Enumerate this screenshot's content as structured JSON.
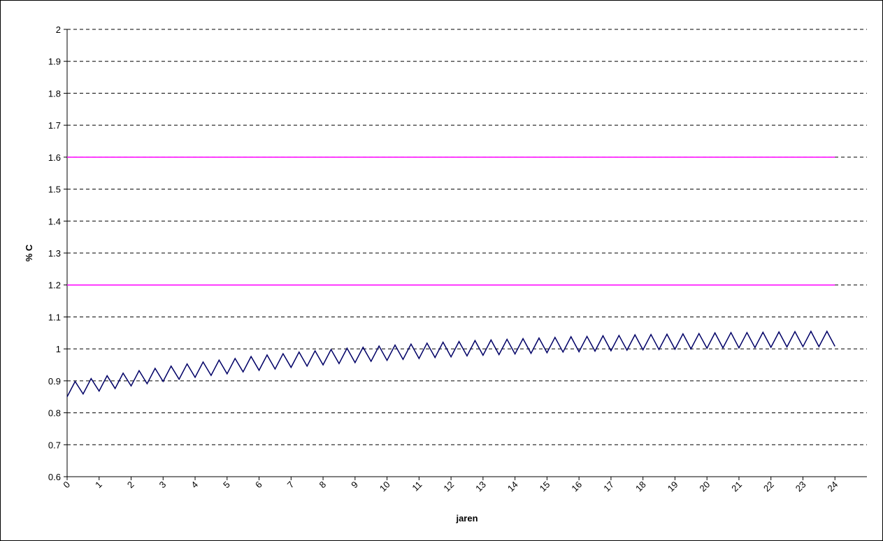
{
  "chart_data": {
    "type": "line",
    "xlabel": "jaren",
    "ylabel": "% C",
    "xlim": [
      0,
      25
    ],
    "xticks": [
      0,
      1,
      2,
      3,
      4,
      5,
      6,
      7,
      8,
      9,
      10,
      11,
      12,
      13,
      14,
      15,
      16,
      17,
      18,
      19,
      20,
      21,
      22,
      23,
      24
    ],
    "ylim": [
      0.6,
      2
    ],
    "yticks": [
      0.6,
      0.7,
      0.8,
      0.9,
      1,
      1.1,
      1.2,
      1.3,
      1.4,
      1.5,
      1.6,
      1.7,
      1.8,
      1.9,
      2
    ],
    "grid": true,
    "series": [
      {
        "color": "#000066",
        "x": [
          0,
          0.25,
          0.5,
          0.75,
          1,
          1.25,
          1.5,
          1.75,
          2,
          2.25,
          2.5,
          2.75,
          3,
          3.25,
          3.5,
          3.75,
          4,
          4.25,
          4.5,
          4.75,
          5,
          5.25,
          5.5,
          5.75,
          6,
          6.25,
          6.5,
          6.75,
          7,
          7.25,
          7.5,
          7.75,
          8,
          8.25,
          8.5,
          8.75,
          9,
          9.25,
          9.5,
          9.75,
          10,
          10.25,
          10.5,
          10.75,
          11,
          11.25,
          11.5,
          11.75,
          12,
          12.25,
          12.5,
          12.75,
          13,
          13.25,
          13.5,
          13.75,
          14,
          14.25,
          14.5,
          14.75,
          15,
          15.25,
          15.5,
          15.75,
          16,
          16.25,
          16.5,
          16.75,
          17,
          17.25,
          17.5,
          17.75,
          18,
          18.25,
          18.5,
          18.75,
          19,
          19.25,
          19.5,
          19.75,
          20,
          20.25,
          20.5,
          20.75,
          21,
          21.25,
          21.5,
          21.75,
          22,
          22.25,
          22.5,
          22.75,
          23,
          23.25,
          23.5,
          23.75,
          24
        ],
        "values": [
          0.85,
          0.898,
          0.859,
          0.907,
          0.868,
          0.916,
          0.876,
          0.924,
          0.884,
          0.932,
          0.891,
          0.939,
          0.898,
          0.946,
          0.905,
          0.953,
          0.911,
          0.959,
          0.917,
          0.965,
          0.922,
          0.97,
          0.928,
          0.976,
          0.933,
          0.981,
          0.937,
          0.985,
          0.942,
          0.99,
          0.946,
          0.994,
          0.95,
          0.998,
          0.954,
          1.002,
          0.957,
          1.005,
          0.961,
          1.009,
          0.964,
          1.012,
          0.967,
          1.015,
          0.97,
          1.018,
          0.973,
          1.021,
          0.975,
          1.023,
          0.978,
          1.026,
          0.98,
          1.028,
          0.982,
          1.03,
          0.984,
          1.032,
          0.986,
          1.034,
          0.988,
          1.036,
          0.99,
          1.038,
          0.991,
          1.039,
          0.993,
          1.041,
          0.994,
          1.042,
          0.996,
          1.044,
          0.997,
          1.045,
          0.998,
          1.046,
          0.999,
          1.047,
          1.0,
          1.048,
          1.002,
          1.05,
          1.003,
          1.051,
          1.003,
          1.051,
          1.004,
          1.052,
          1.005,
          1.053,
          1.006,
          1.054,
          1.007,
          1.055,
          1.007,
          1.055,
          1.008
        ]
      },
      {
        "color": "#ff00ff",
        "x": [
          0,
          24
        ],
        "values": [
          1.6,
          1.6
        ]
      },
      {
        "color": "#ff00ff",
        "x": [
          0,
          24
        ],
        "values": [
          1.2,
          1.2
        ]
      }
    ]
  }
}
